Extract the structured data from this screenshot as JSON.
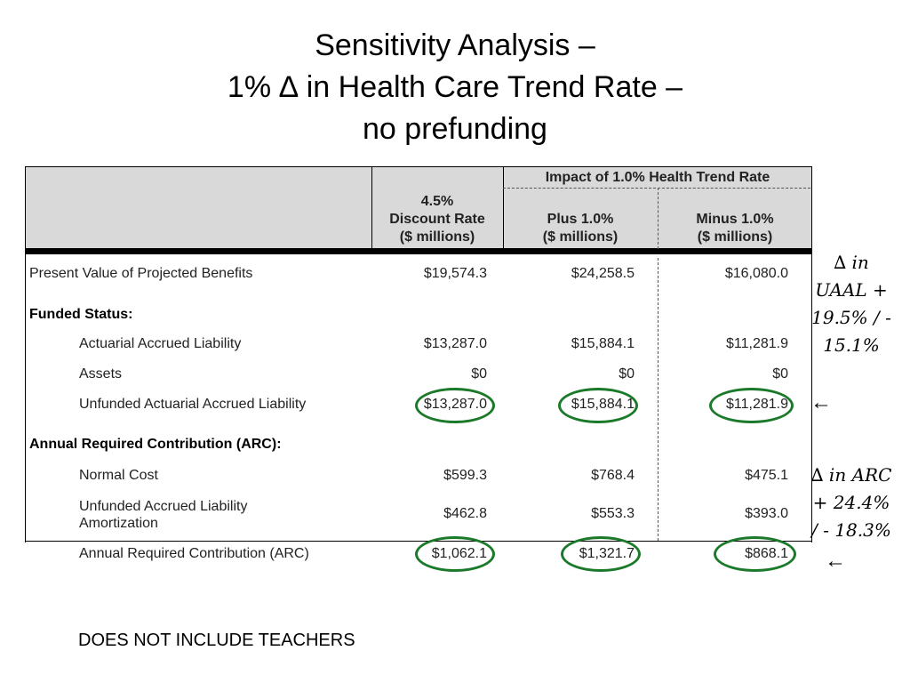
{
  "slide": {
    "title_lines": [
      "Sensitivity Analysis –",
      "1% ∆ in Health Care Trend Rate –",
      "no prefunding"
    ],
    "footnote": "DOES NOT INCLUDE TEACHERS"
  },
  "table": {
    "group_header": "Impact of 1.0% Health Trend Rate",
    "columns": [
      {
        "lines": [
          "4.5%",
          "Discount Rate",
          "($ millions)"
        ]
      },
      {
        "lines": [
          "Plus 1.0%",
          "($ millions)"
        ]
      },
      {
        "lines": [
          "Minus 1.0%",
          "($ millions)"
        ]
      }
    ],
    "rows": [
      {
        "label": "Present Value of Projected Benefits",
        "values": [
          "$19,574.3",
          "$24,258.5",
          "$16,080.0"
        ]
      },
      {
        "label": "Funded Status:",
        "section": true
      },
      {
        "label": "Actuarial Accrued Liability",
        "values": [
          "$13,287.0",
          "$15,884.1",
          "$11,281.9"
        ]
      },
      {
        "label": "Assets",
        "values": [
          "$0",
          "$0",
          "$0"
        ]
      },
      {
        "label": "Unfunded Actuarial Accrued Liability",
        "values": [
          "$13,287.0",
          "$15,884.1",
          "$11,281.9"
        ]
      },
      {
        "label": "Annual Required Contribution (ARC):",
        "section": true
      },
      {
        "label": "Normal Cost",
        "values": [
          "$599.3",
          "$768.4",
          "$475.1"
        ]
      },
      {
        "label_lines": [
          "Unfunded Accrued Liability",
          "Amortization"
        ],
        "values": [
          "$462.8",
          "$553.3",
          "$393.0"
        ]
      },
      {
        "label": "Annual Required Contribution (ARC)",
        "values": [
          "$1,062.1",
          "$1,321.7",
          "$868.1"
        ]
      }
    ]
  },
  "annotations": {
    "uaal_note_lines": [
      "∆ in",
      "UAAL +",
      "19.5% / -",
      "15.1%"
    ],
    "arc_note_lines": [
      "∆ in ARC",
      "+ 24.4%",
      "/ - 18.3%"
    ],
    "arrow": "←",
    "circle_color": "#1b7a2a"
  }
}
